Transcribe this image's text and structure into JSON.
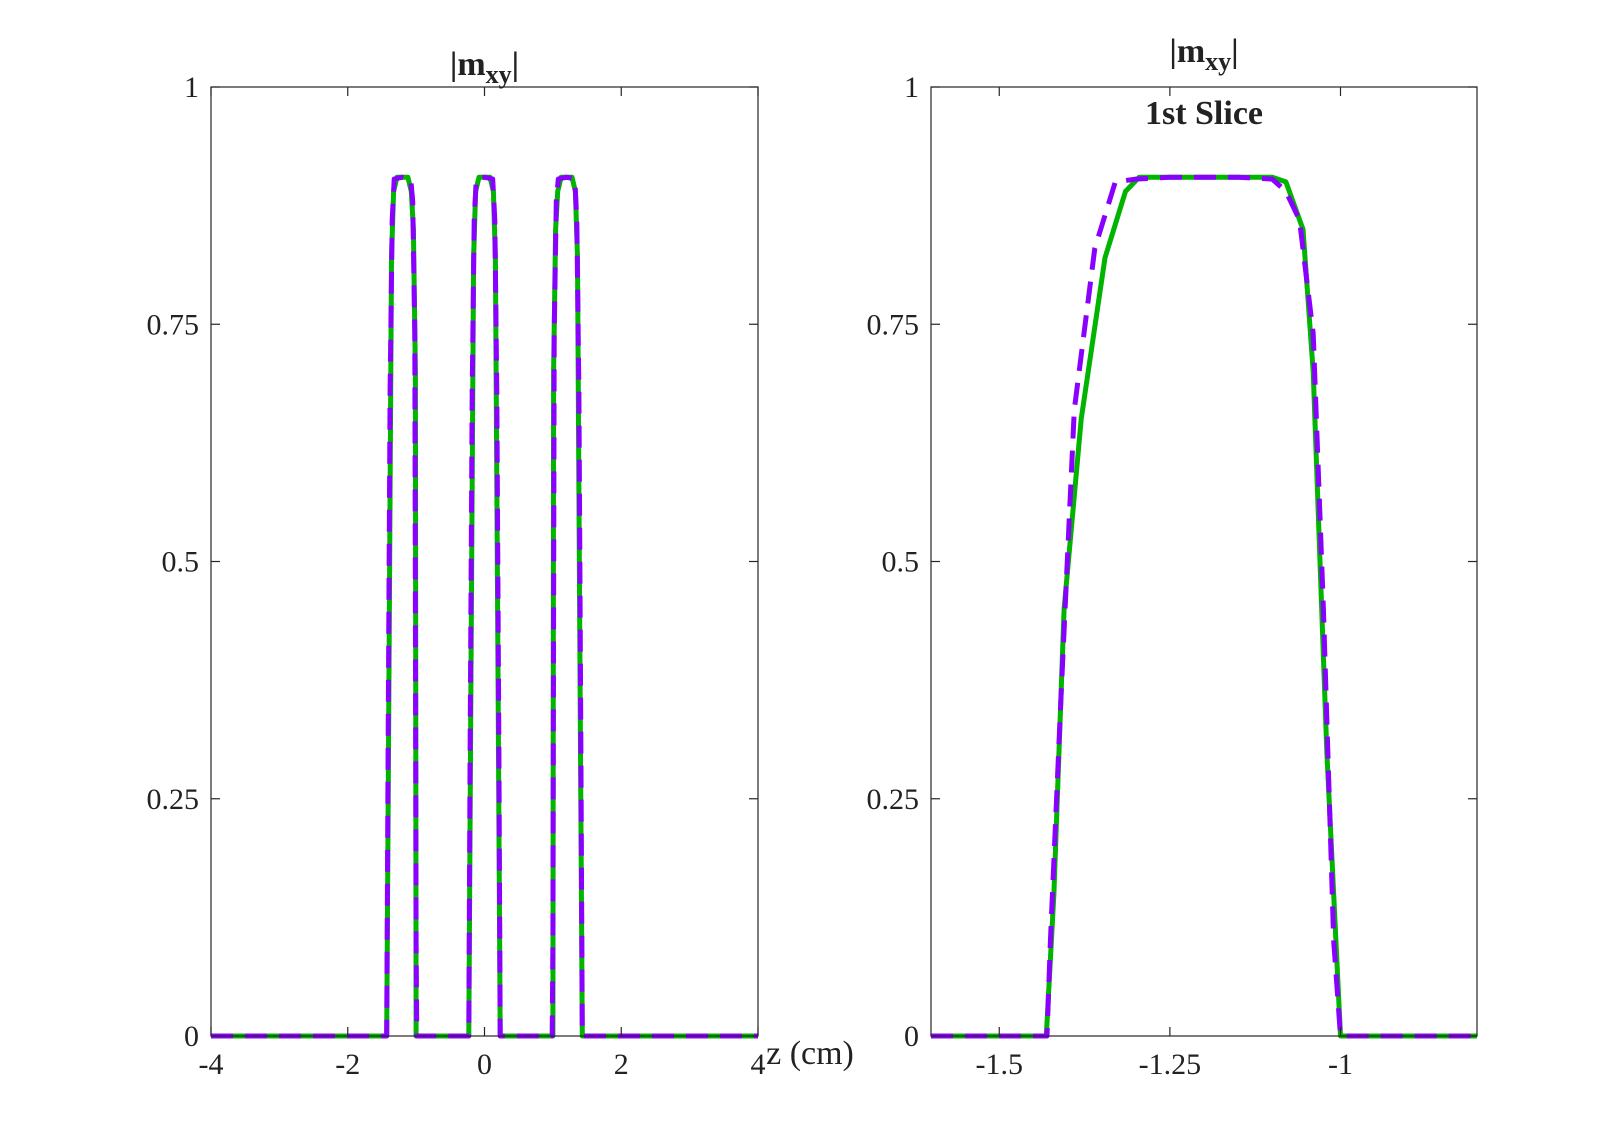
{
  "figure": {
    "xlabel": "z (cm)"
  },
  "chart_data": [
    {
      "type": "line",
      "title": "|m",
      "title_sub": "xy",
      "title_end": "|",
      "title_line2": "",
      "xlabel": "z (cm)",
      "ylabel": "",
      "xlim": [
        -4,
        4
      ],
      "ylim": [
        0,
        1
      ],
      "xticks": [
        -4,
        -2,
        0,
        2,
        4
      ],
      "xtick_labels": [
        "-4",
        "-2",
        "0",
        "2",
        "4"
      ],
      "yticks": [
        0,
        0.25,
        0.5,
        0.75,
        1
      ],
      "ytick_labels": [
        "0",
        "0.25",
        "0.5",
        "0.75",
        "1"
      ],
      "grid": false,
      "series": [
        {
          "color": "#00b400",
          "style": "solid",
          "x": [
            -4,
            -1.43,
            -1.4,
            -1.36,
            -1.33,
            -1.28,
            -1.2,
            -1.12,
            -1.07,
            -1.04,
            -1.01,
            -1.0,
            -0.23,
            -0.2,
            -0.16,
            -0.13,
            -0.08,
            0,
            0.08,
            0.13,
            0.16,
            0.2,
            0.23,
            1.0,
            1.01,
            1.04,
            1.07,
            1.12,
            1.2,
            1.28,
            1.33,
            1.36,
            1.4,
            1.43,
            4
          ],
          "y": [
            0,
            0,
            0.35,
            0.82,
            0.89,
            0.905,
            0.905,
            0.905,
            0.89,
            0.85,
            0.7,
            0,
            0,
            0.35,
            0.82,
            0.89,
            0.905,
            0.905,
            0.905,
            0.89,
            0.82,
            0.35,
            0,
            0,
            0.7,
            0.85,
            0.89,
            0.905,
            0.905,
            0.905,
            0.89,
            0.82,
            0.35,
            0,
            0
          ]
        },
        {
          "color": "#8a00ff",
          "style": "dashed",
          "x": [
            -4,
            -1.43,
            -1.41,
            -1.38,
            -1.35,
            -1.32,
            -1.2,
            -1.08,
            -1.05,
            -1.02,
            -1.0,
            -0.99,
            -0.23,
            -0.21,
            -0.18,
            -0.15,
            -0.12,
            0,
            0.12,
            0.15,
            0.18,
            0.21,
            0.23,
            0.99,
            1.0,
            1.02,
            1.05,
            1.08,
            1.2,
            1.32,
            1.35,
            1.38,
            1.41,
            1.43,
            4
          ],
          "y": [
            0,
            0,
            0.3,
            0.68,
            0.86,
            0.903,
            0.905,
            0.903,
            0.88,
            0.74,
            0.1,
            0,
            0,
            0.3,
            0.68,
            0.86,
            0.903,
            0.905,
            0.903,
            0.86,
            0.68,
            0.3,
            0,
            0,
            0.1,
            0.74,
            0.88,
            0.903,
            0.905,
            0.903,
            0.86,
            0.68,
            0.3,
            0,
            0
          ]
        }
      ]
    },
    {
      "type": "line",
      "title": "|m",
      "title_sub": "xy",
      "title_end": "|",
      "title_line2": "1st Slice",
      "xlabel": "",
      "ylabel": "",
      "xlim": [
        -1.6,
        -0.8
      ],
      "ylim": [
        0,
        1
      ],
      "xticks": [
        -1.5,
        -1.25,
        -1
      ],
      "xtick_labels": [
        "-1.5",
        "-1.25",
        "-1"
      ],
      "yticks": [
        0,
        0.25,
        0.5,
        0.75,
        1
      ],
      "ytick_labels": [
        "0",
        "0.25",
        "0.5",
        "0.75",
        "1"
      ],
      "grid": false,
      "series": [
        {
          "color": "#00b400",
          "style": "solid",
          "x": [
            -1.6,
            -1.43,
            -1.41,
            -1.39,
            -1.37,
            -1.35,
            -1.325,
            -1.305,
            -1.25,
            -1.2,
            -1.15,
            -1.115,
            -1.09,
            -1.065,
            -1.045,
            -1.025,
            -1.0,
            -0.8
          ],
          "y": [
            0,
            0,
            0.35,
            0.65,
            0.82,
            0.89,
            0.905,
            0.905,
            0.905,
            0.905,
            0.905,
            0.905,
            0.89,
            0.85,
            0.7,
            0.3,
            0,
            0
          ],
          "x_override": [
            -1.6,
            -1.431,
            -1.42,
            -1.405,
            -1.38,
            -1.345,
            -1.315,
            -1.295,
            -1.25,
            -1.2,
            -1.15,
            -1.1,
            -1.08,
            -1.055,
            -1.04,
            -1.02,
            -1.0,
            -0.8
          ],
          "y_override": [
            0,
            0,
            0.15,
            0.45,
            0.65,
            0.82,
            0.89,
            0.905,
            0.905,
            0.905,
            0.905,
            0.905,
            0.9,
            0.85,
            0.7,
            0.3,
            0,
            0
          ]
        },
        {
          "color": "#8a00ff",
          "style": "dashed",
          "x": [
            -1.6,
            -1.43,
            -1.425,
            -1.41,
            -1.39,
            -1.36,
            -1.33,
            -1.3,
            -1.25,
            -1.2,
            -1.15,
            -1.1,
            -1.08,
            -1.06,
            -1.04,
            -1.025,
            -1.01,
            -1.0,
            -0.8
          ],
          "y": [
            0,
            0,
            0.1,
            0.35,
            0.66,
            0.83,
            0.9,
            0.903,
            0.905,
            0.905,
            0.905,
            0.903,
            0.89,
            0.86,
            0.74,
            0.45,
            0.1,
            0,
            0
          ]
        }
      ]
    }
  ]
}
